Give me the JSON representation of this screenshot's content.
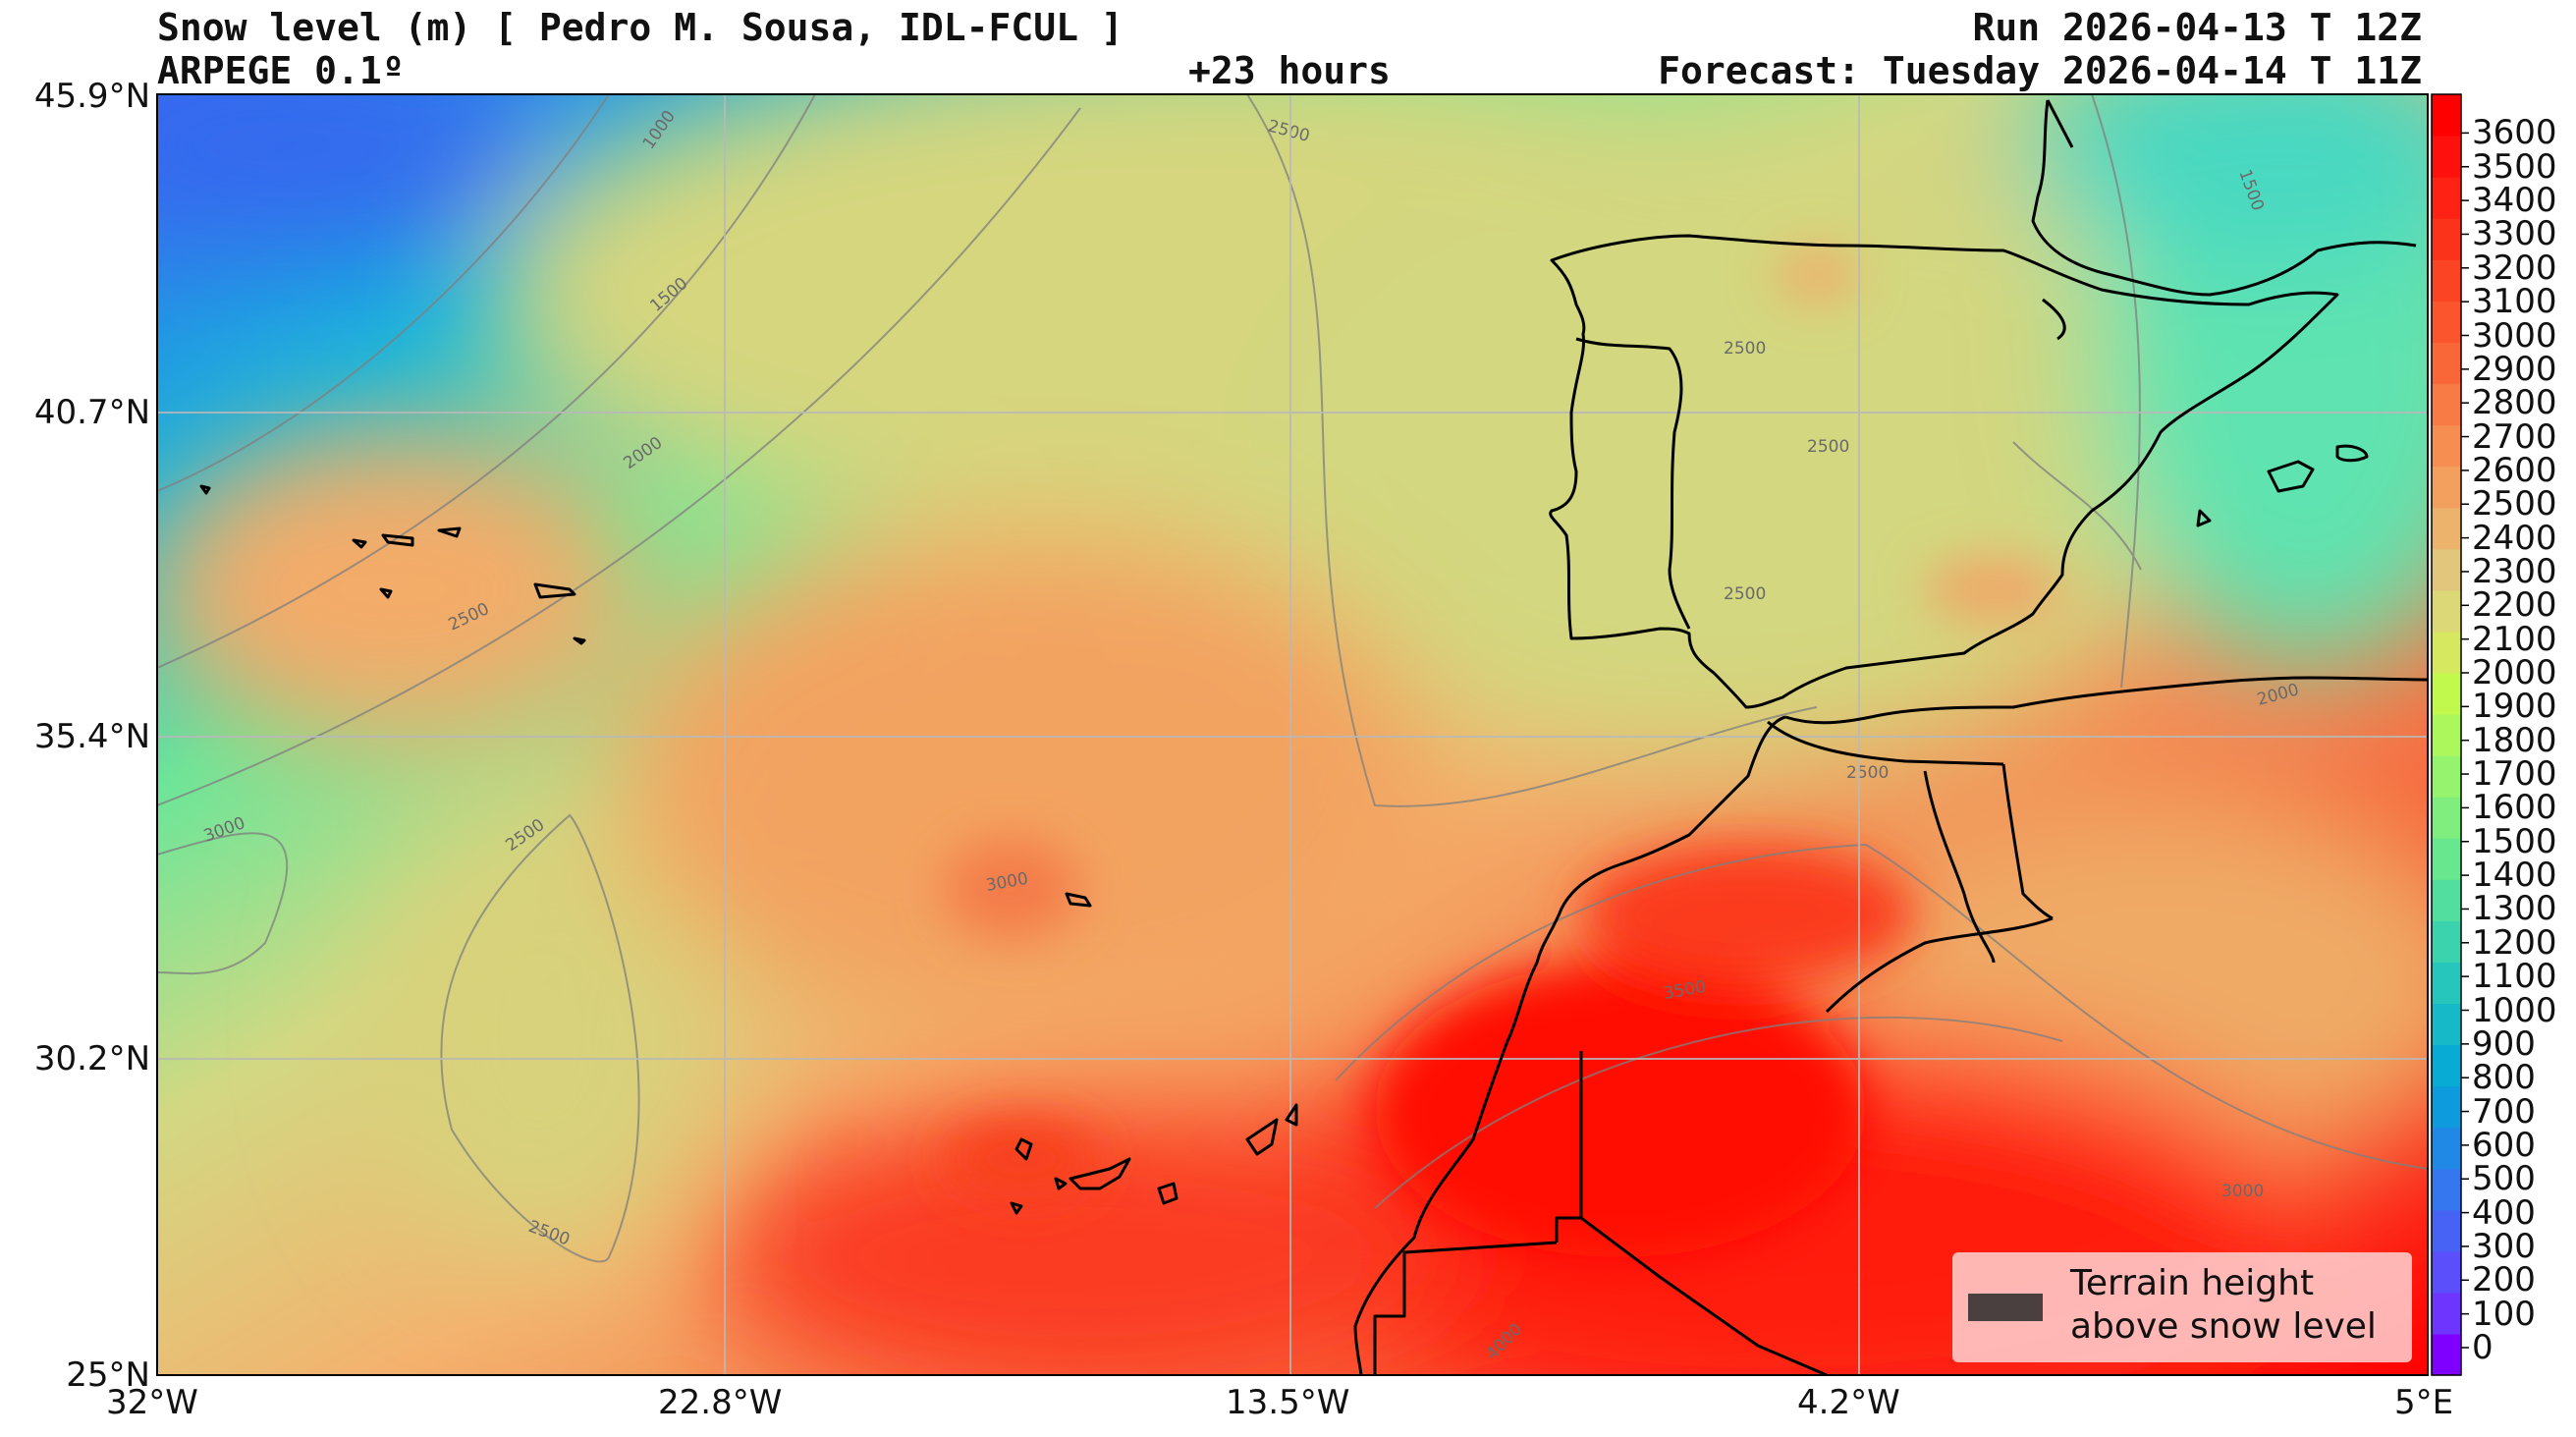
{
  "header": {
    "title": "Snow level (m) [ Pedro M. Sousa, IDL-FCUL ]",
    "model": "ARPEGE 0.1º",
    "lead_time": "+23 hours",
    "run": "Run 2026-04-13 T 12Z",
    "forecast": "Forecast: Tuesday 2026-04-14 T 11Z"
  },
  "axes": {
    "lat_labels": [
      "45.9°N",
      "40.7°N",
      "35.4°N",
      "30.2°N",
      "25°N"
    ],
    "lon_labels": [
      "32°W",
      "22.8°W",
      "13.5°W",
      "4.2°W",
      "5°E"
    ]
  },
  "colorbar": {
    "labels": [
      "3600",
      "3500",
      "3400",
      "3300",
      "3200",
      "3100",
      "3000",
      "2900",
      "2800",
      "2700",
      "2600",
      "2500",
      "2400",
      "2300",
      "2200",
      "2100",
      "2000",
      "1900",
      "1800",
      "1700",
      "1600",
      "1500",
      "1400",
      "1300",
      "1200",
      "1100",
      "1000",
      "900",
      "800",
      "700",
      "600",
      "500",
      "400",
      "300",
      "200",
      "100",
      "0"
    ],
    "colors": [
      "#8000ff",
      "#6d35fd",
      "#5a4ffa",
      "#4763f5",
      "#3477ee",
      "#2089e6",
      "#0d9bdd",
      "#07abd3",
      "#16b9c8",
      "#27c6bc",
      "#3bd3ae",
      "#51de9f",
      "#68e78e",
      "#7fee7e",
      "#96f36d",
      "#abf75c",
      "#c1f94c",
      "#d6e85f",
      "#dcd777",
      "#e2c67c",
      "#ecb36d",
      "#f3a05f",
      "#f68d51",
      "#f87a44",
      "#f96738",
      "#fa552d",
      "#fb4424",
      "#fc331b",
      "#fd2214",
      "#fe110c",
      "#ff0000"
    ]
  },
  "contour_labels": [
    "1000",
    "1500",
    "2000",
    "2500",
    "3000",
    "3500",
    "4000"
  ],
  "legend": {
    "line1": "Terrain height",
    "line2": "above snow level",
    "swatch_color": "#4a4040"
  }
}
